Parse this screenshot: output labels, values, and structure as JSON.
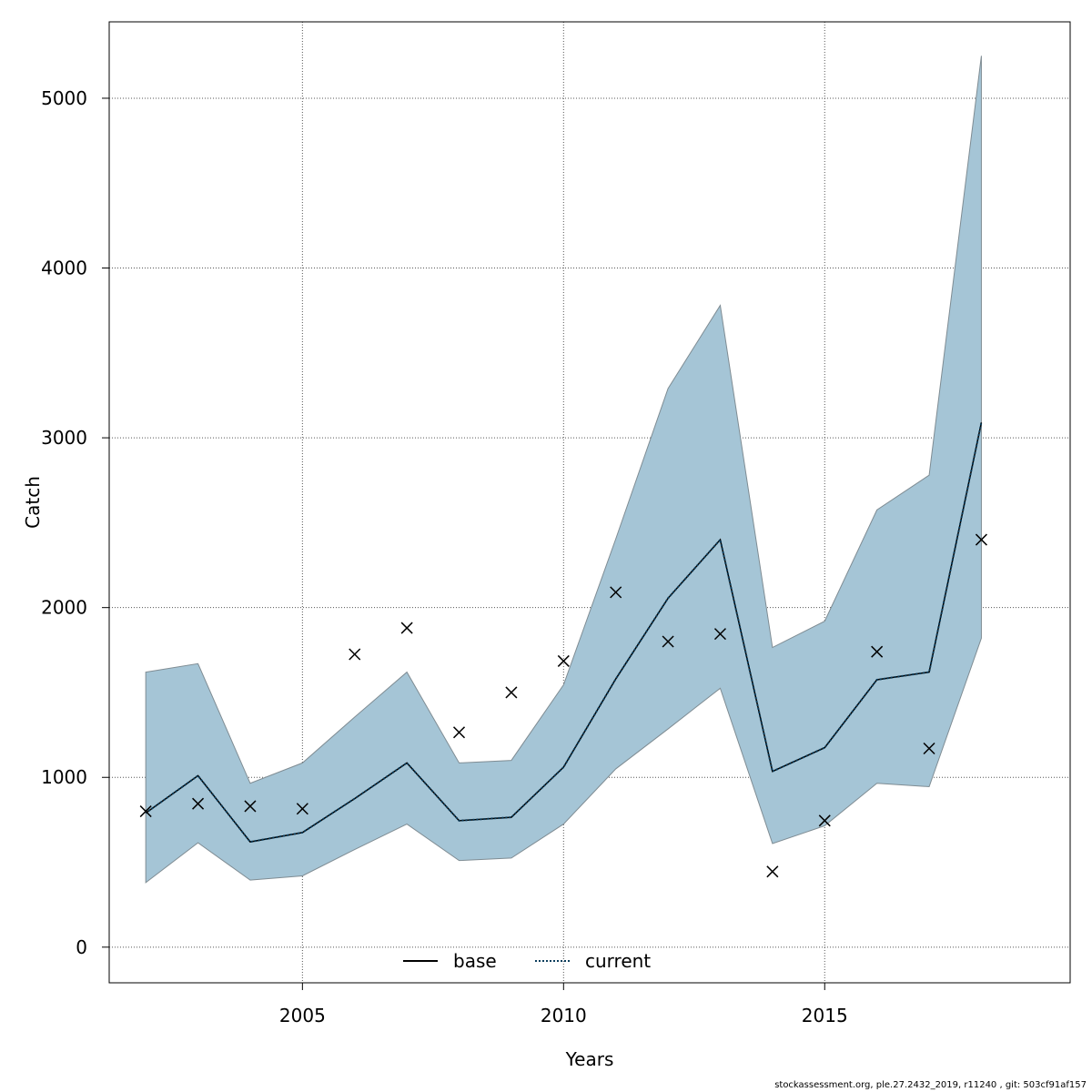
{
  "chart_data": {
    "type": "line",
    "xlabel": "Years",
    "ylabel": "Catch",
    "xlim": [
      2001.3,
      2019.7
    ],
    "ylim": [
      -210,
      5450
    ],
    "xticks": [
      2005,
      2010,
      2015
    ],
    "yticks": [
      0,
      1000,
      2000,
      3000,
      4000,
      5000
    ],
    "grid": true,
    "x": [
      2002,
      2003,
      2004,
      2005,
      2006,
      2007,
      2008,
      2009,
      2010,
      2011,
      2012,
      2013,
      2014,
      2015,
      2016,
      2017,
      2018
    ],
    "band": {
      "color": "#a5c5d6",
      "lower": [
        380,
        615,
        395,
        420,
        575,
        725,
        510,
        525,
        725,
        1050,
        1285,
        1525,
        610,
        715,
        965,
        945,
        1820
      ],
      "upper": [
        1620,
        1670,
        965,
        1085,
        1355,
        1620,
        1085,
        1100,
        1545,
        2405,
        3290,
        3780,
        1765,
        1920,
        2575,
        2780,
        5250
      ]
    },
    "series": [
      {
        "name": "base",
        "style": "solid",
        "color": "#000000",
        "values": [
          790,
          1010,
          620,
          675,
          875,
          1085,
          745,
          765,
          1060,
          1580,
          2055,
          2400,
          1035,
          1175,
          1575,
          1620,
          3090
        ]
      },
      {
        "name": "current",
        "style": "dotted",
        "color": "#0b3d5c",
        "values": [
          790,
          1010,
          620,
          675,
          875,
          1085,
          745,
          765,
          1060,
          1580,
          2055,
          2400,
          1035,
          1175,
          1575,
          1620,
          3090
        ]
      }
    ],
    "observed": {
      "marker": "x",
      "values": [
        800,
        845,
        830,
        815,
        1725,
        1880,
        1265,
        1500,
        1685,
        2090,
        1800,
        1845,
        445,
        745,
        1740,
        1170,
        2400
      ]
    },
    "legend": {
      "placement": "bottom-center",
      "entries": [
        {
          "label": "base",
          "style": "solid",
          "color": "#000000"
        },
        {
          "label": "current",
          "style": "dotted",
          "color": "#0b3d5c"
        }
      ]
    }
  },
  "footer": "stockassessment.org, ple.27.2432_2019, r11240 , git: 503cf91af157"
}
